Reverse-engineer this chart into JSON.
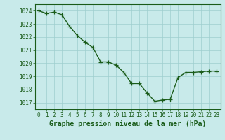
{
  "x": [
    0,
    1,
    2,
    3,
    4,
    5,
    6,
    7,
    8,
    9,
    10,
    11,
    12,
    13,
    14,
    15,
    16,
    17,
    18,
    19,
    20,
    21,
    22,
    23
  ],
  "y": [
    1024.0,
    1023.8,
    1023.9,
    1023.7,
    1022.8,
    1022.1,
    1021.6,
    1021.2,
    1020.1,
    1020.1,
    1019.85,
    1019.3,
    1018.45,
    1018.45,
    1017.75,
    1017.1,
    1017.2,
    1017.25,
    1018.9,
    1019.3,
    1019.3,
    1019.35,
    1019.4,
    1019.4
  ],
  "line_color": "#1a5c1a",
  "marker_color": "#1a5c1a",
  "bg_color": "#c8eaea",
  "grid_color": "#9ecece",
  "xlabel": "Graphe pression niveau de la mer (hPa)",
  "ylim_min": 1016.5,
  "ylim_max": 1024.5,
  "yticks": [
    1017,
    1018,
    1019,
    1020,
    1021,
    1022,
    1023,
    1024
  ],
  "xticks": [
    0,
    1,
    2,
    3,
    4,
    5,
    6,
    7,
    8,
    9,
    10,
    11,
    12,
    13,
    14,
    15,
    16,
    17,
    18,
    19,
    20,
    21,
    22,
    23
  ],
  "tick_label_fontsize": 5.5,
  "xlabel_fontsize": 7.0,
  "line_width": 1.0,
  "marker_size": 4
}
